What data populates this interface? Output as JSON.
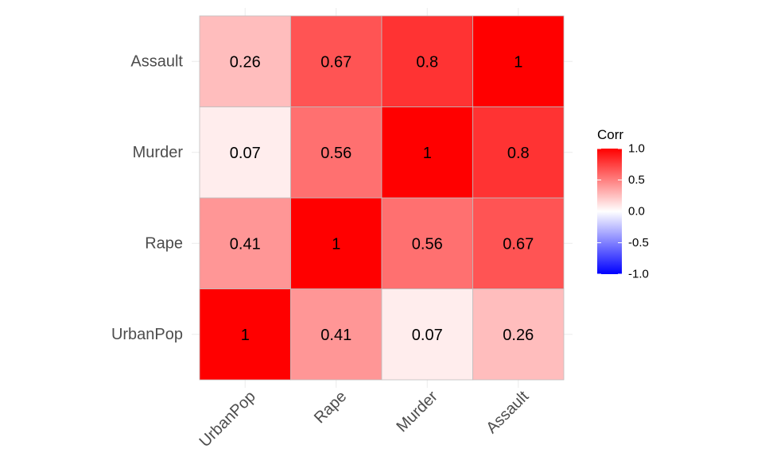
{
  "chart_data": {
    "type": "heatmap",
    "x_categories": [
      "UrbanPop",
      "Rape",
      "Murder",
      "Assault"
    ],
    "y_categories": [
      "UrbanPop",
      "Rape",
      "Murder",
      "Assault"
    ],
    "values": [
      [
        1,
        0.41,
        0.07,
        0.26
      ],
      [
        0.41,
        1,
        0.56,
        0.67
      ],
      [
        0.07,
        0.56,
        1,
        0.8
      ],
      [
        0.26,
        0.67,
        0.8,
        1
      ]
    ],
    "cell_labels": [
      [
        "1",
        "0.41",
        "0.07",
        "0.26"
      ],
      [
        "0.41",
        "1",
        "0.56",
        "0.67"
      ],
      [
        "0.07",
        "0.56",
        "1",
        "0.8"
      ],
      [
        "0.26",
        "0.67",
        "0.8",
        "1"
      ]
    ],
    "legend": {
      "title": "Corr",
      "ticks": [
        "1.0",
        "0.5",
        "0.0",
        "-0.5",
        "-1.0"
      ],
      "tick_values": [
        1.0,
        0.5,
        0.0,
        -0.5,
        -1.0
      ],
      "range": [
        -1,
        1
      ],
      "colors": {
        "low": "#0000ff",
        "mid": "#ffffff",
        "high": "#ff0000"
      },
      "placement": "right"
    },
    "grid": true,
    "title": "",
    "xlabel": "",
    "ylabel": ""
  }
}
